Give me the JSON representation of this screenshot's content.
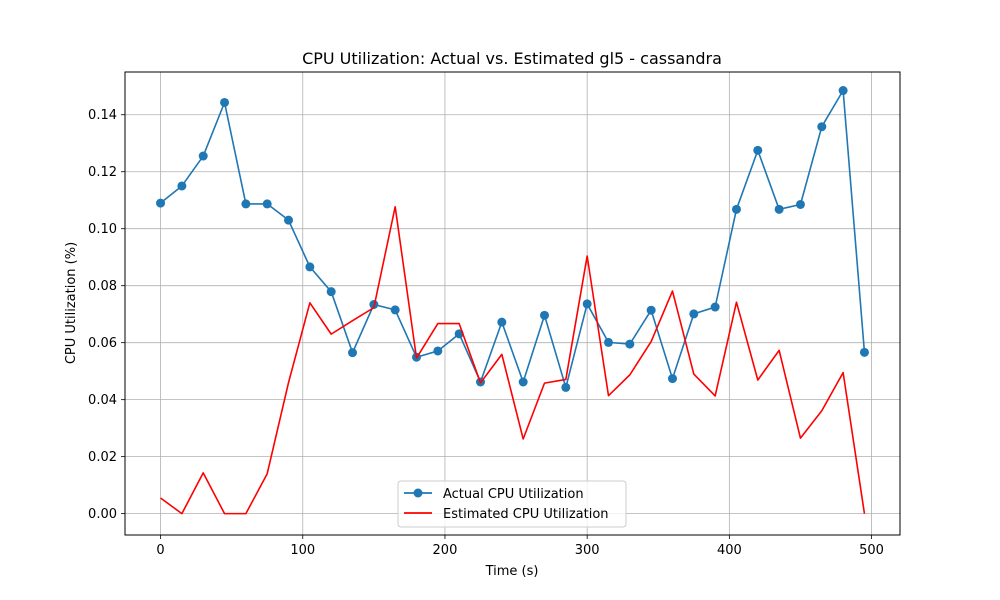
{
  "chart_data": {
    "type": "line",
    "title": "CPU Utilization: Actual vs. Estimated gl5 - cassandra",
    "xlabel": "Time (s)",
    "ylabel": "CPU Utilization (%)",
    "xlim": [
      -25,
      520
    ],
    "ylim": [
      -0.0075,
      0.155
    ],
    "xticks": [
      0,
      100,
      200,
      300,
      400,
      500
    ],
    "xtick_labels": [
      "0",
      "100",
      "200",
      "300",
      "400",
      "500"
    ],
    "yticks": [
      0.0,
      0.02,
      0.04,
      0.06,
      0.08,
      0.1,
      0.12,
      0.14
    ],
    "ytick_labels": [
      "0.00",
      "0.02",
      "0.04",
      "0.06",
      "0.08",
      "0.10",
      "0.12",
      "0.14"
    ],
    "grid": true,
    "legend_position": "bottom-center",
    "x": [
      0,
      15,
      30,
      45,
      60,
      75,
      90,
      105,
      120,
      135,
      150,
      165,
      180,
      195,
      210,
      225,
      240,
      255,
      270,
      285,
      300,
      315,
      330,
      345,
      360,
      375,
      390,
      405,
      420,
      435,
      450,
      465,
      480,
      495
    ],
    "series": [
      {
        "name": "Actual CPU Utilization",
        "color": "#1f77b4",
        "marker": "circle",
        "values": [
          0.109,
          0.115,
          0.1255,
          0.1443,
          0.1087,
          0.1087,
          0.103,
          0.0866,
          0.0779,
          0.0565,
          0.0734,
          0.0715,
          0.0549,
          0.0571,
          0.0631,
          0.0462,
          0.0672,
          0.0462,
          0.0696,
          0.0443,
          0.0736,
          0.0601,
          0.0595,
          0.0714,
          0.0474,
          0.0701,
          0.0725,
          0.1068,
          0.1275,
          0.1068,
          0.1085,
          0.1358,
          0.1485,
          0.0566
        ]
      },
      {
        "name": "Estimated CPU Utilization",
        "color": "#ff0000",
        "marker": "none",
        "values": [
          0.0055,
          0.0,
          0.0143,
          0.0,
          0.0,
          0.014,
          0.046,
          0.074,
          0.063,
          0.0677,
          0.0723,
          0.1077,
          0.0546,
          0.0667,
          0.0667,
          0.0459,
          0.0559,
          0.0262,
          0.0458,
          0.0471,
          0.0904,
          0.0414,
          0.0487,
          0.0604,
          0.0781,
          0.049,
          0.0413,
          0.0742,
          0.0469,
          0.0573,
          0.0265,
          0.0361,
          0.0495,
          0.0
        ]
      }
    ]
  }
}
